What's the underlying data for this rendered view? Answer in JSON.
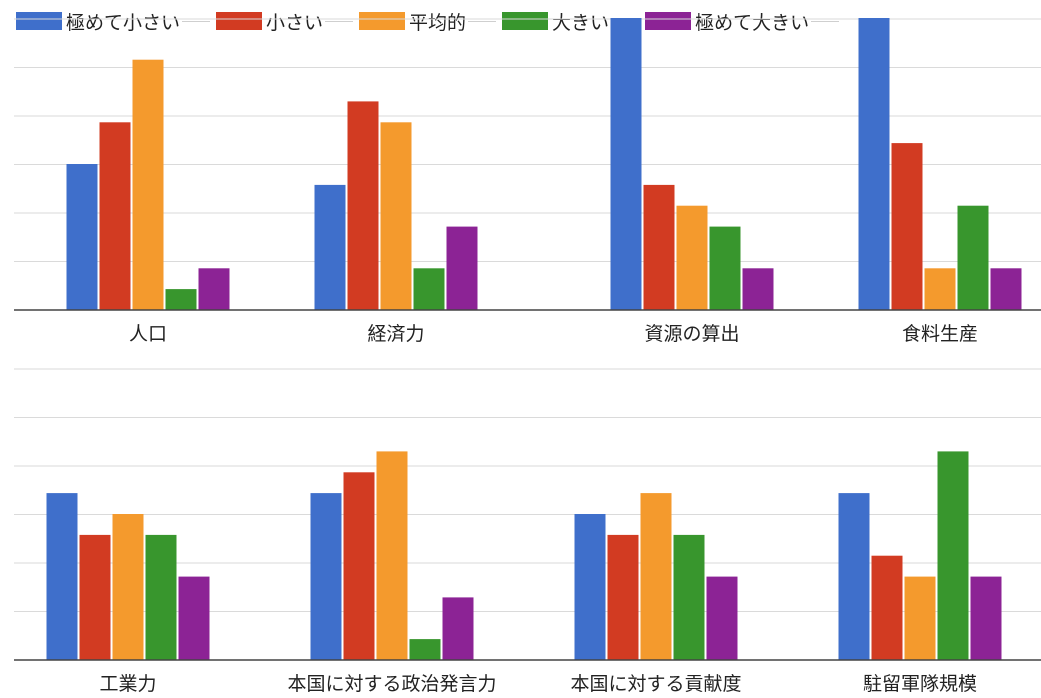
{
  "legend": {
    "series_labels": [
      "極めて小さい",
      "小さい",
      "平均的",
      "大きい",
      "極めて大きい"
    ]
  },
  "colors": {
    "series": [
      "#3f6fcb",
      "#d23b22",
      "#f49a2d",
      "#38962d",
      "#8c2395"
    ],
    "grid": "#dadada",
    "axis": "#444444"
  },
  "chart_data": [
    {
      "type": "bar",
      "grid": true,
      "ylim": [
        0,
        14
      ],
      "categories": [
        "人口",
        "経済力",
        "資源の算出",
        "食料生産"
      ],
      "series": [
        {
          "name": "極めて小さい",
          "values": [
            7,
            6,
            14,
            14
          ]
        },
        {
          "name": "小さい",
          "values": [
            9,
            10,
            6,
            8
          ]
        },
        {
          "name": "平均的",
          "values": [
            12,
            9,
            5,
            2
          ]
        },
        {
          "name": "大きい",
          "values": [
            1,
            2,
            4,
            5
          ]
        },
        {
          "name": "極めて大きい",
          "values": [
            2,
            4,
            2,
            2
          ]
        }
      ]
    },
    {
      "type": "bar",
      "grid": true,
      "ylim": [
        0,
        14
      ],
      "categories": [
        "工業力",
        "本国に対する政治発言力",
        "本国に対する貢献度",
        "駐留軍隊規模"
      ],
      "series": [
        {
          "name": "極めて小さい",
          "values": [
            8,
            8,
            7,
            8
          ]
        },
        {
          "name": "小さい",
          "values": [
            6,
            9,
            6,
            5
          ]
        },
        {
          "name": "平均的",
          "values": [
            7,
            10,
            8,
            4
          ]
        },
        {
          "name": "大きい",
          "values": [
            6,
            1,
            6,
            10
          ]
        },
        {
          "name": "極めて大きい",
          "values": [
            4,
            3,
            4,
            4
          ]
        }
      ]
    }
  ]
}
